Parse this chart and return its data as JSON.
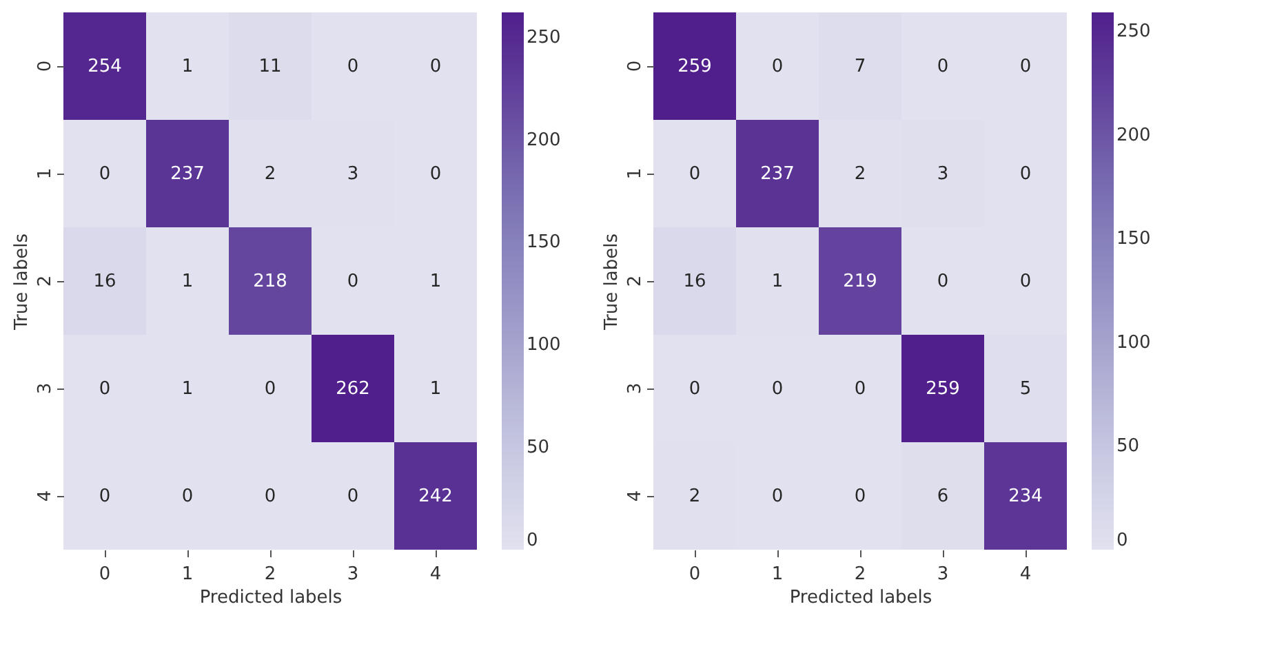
{
  "chart_data": [
    {
      "type": "heatmap",
      "xlabel": "Predicted labels",
      "ylabel": "True labels",
      "categories": [
        "0",
        "1",
        "2",
        "3",
        "4"
      ],
      "y_categories": [
        "0",
        "1",
        "2",
        "3",
        "4"
      ],
      "cells": [
        [
          254,
          1,
          11,
          0,
          0
        ],
        [
          0,
          237,
          2,
          3,
          0
        ],
        [
          16,
          1,
          218,
          0,
          1
        ],
        [
          0,
          1,
          0,
          262,
          1
        ],
        [
          0,
          0,
          0,
          0,
          242
        ]
      ],
      "data_labels": true,
      "clim": [
        0,
        262
      ],
      "cticks": [
        0,
        50,
        100,
        150,
        200,
        250
      ]
    },
    {
      "type": "heatmap",
      "xlabel": "Predicted labels",
      "ylabel": "True labels",
      "categories": [
        "0",
        "1",
        "2",
        "3",
        "4"
      ],
      "y_categories": [
        "0",
        "1",
        "2",
        "3",
        "4"
      ],
      "cells": [
        [
          259,
          0,
          7,
          0,
          0
        ],
        [
          0,
          237,
          2,
          3,
          0
        ],
        [
          16,
          1,
          219,
          0,
          0
        ],
        [
          0,
          0,
          0,
          259,
          5
        ],
        [
          2,
          0,
          0,
          6,
          234
        ]
      ],
      "data_labels": true,
      "clim": [
        0,
        259
      ],
      "cticks": [
        0,
        50,
        100,
        150,
        200,
        250
      ]
    }
  ]
}
